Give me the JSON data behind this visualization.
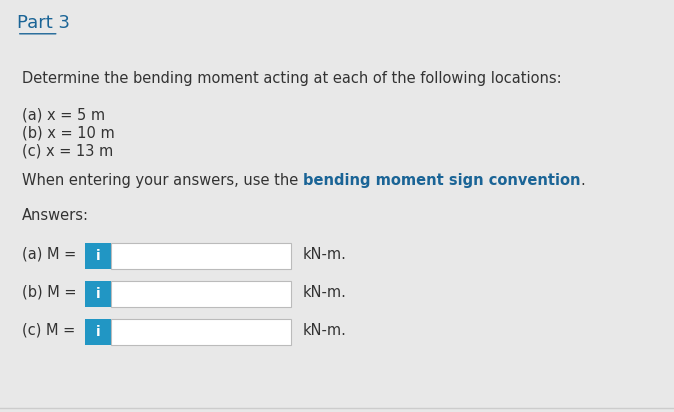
{
  "title": "Part 3",
  "title_color": "#1a6496",
  "header_bg": "#e8e8e8",
  "body_bg": "#ffffff",
  "separator_color": "#cccccc",
  "main_text": "Determine the bending moment acting at each of the following locations:",
  "items": [
    "(a) x = 5 m",
    "(b) x = 10 m",
    "(c) x = 13 m"
  ],
  "note_parts": [
    {
      "text": "When entering your answers, use the ",
      "bold": false,
      "color": "#333333"
    },
    {
      "text": "bending moment sign convention",
      "bold": true,
      "color": "#1a6496"
    },
    {
      "text": ".",
      "bold": false,
      "color": "#333333"
    }
  ],
  "answers_label": "Answers:",
  "answer_rows": [
    {
      "label": "(a) M = ",
      "unit": "kN-m."
    },
    {
      "label": "(b) M = ",
      "unit": "kN-m."
    },
    {
      "label": "(c) M = ",
      "unit": "kN-m."
    }
  ],
  "btn_color": "#2196C4",
  "btn_text": "i",
  "btn_text_color": "#ffffff",
  "input_box_color": "#ffffff",
  "input_box_border": "#bbbbbb",
  "text_color": "#333333",
  "font_size_main": 10.5,
  "font_size_title": 13
}
